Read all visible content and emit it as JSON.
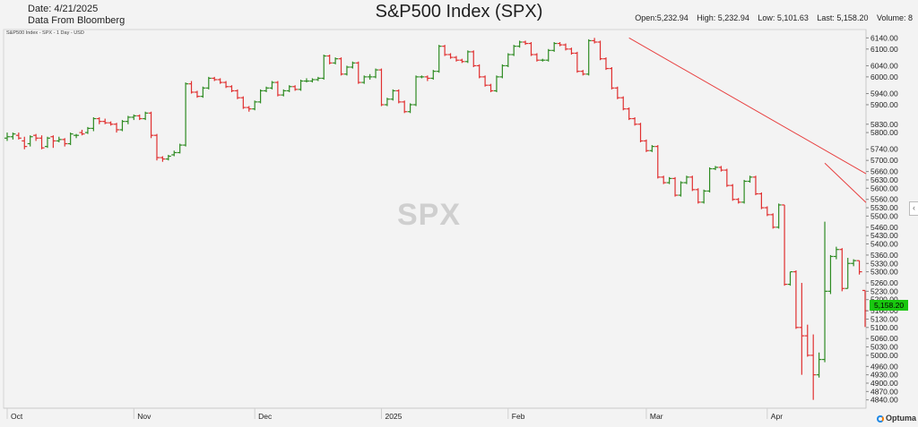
{
  "header": {
    "date": "Date: 4/21/2025",
    "source": "Data From Bloomberg",
    "title": "S&P500 Index (SPX)",
    "open": "Open:5,232.94",
    "high": "High: 5,232.94",
    "low": "Low: 5,101.63",
    "last": "Last: 5,158.20",
    "volume": "Volume: 8"
  },
  "subtitle": "S&P500 Index - SPX - 1 Day - USD",
  "watermark": "SPX",
  "price_tag": "5,158.20",
  "logo": "Optuma",
  "colors": {
    "up": "#2e8b22",
    "down": "#e03030",
    "trend": "#e84040",
    "price_tag": "#19c70f",
    "background": "#f3f3f3"
  },
  "chart_data": {
    "type": "ohlc",
    "ylim": [
      4810,
      6170
    ],
    "ytick_labels": [
      "6140.00",
      "6100.00",
      "6040.00",
      "6000.00",
      "5940.00",
      "5900.00",
      "5830.00",
      "5800.00",
      "5740.00",
      "5700.00",
      "5660.00",
      "5630.00",
      "5600.00",
      "5560.00",
      "5530.00",
      "5500.00",
      "5460.00",
      "5430.00",
      "5400.00",
      "5360.00",
      "5330.00",
      "5300.00",
      "5260.00",
      "5230.00",
      "5200.00",
      "5160.00",
      "5130.00",
      "5100.00",
      "5060.00",
      "5030.00",
      "5000.00",
      "4960.00",
      "4930.00",
      "4900.00",
      "4870.00",
      "4840.00"
    ],
    "month_labels": [
      {
        "label": "Oct",
        "i": 0
      },
      {
        "label": "Nov",
        "i": 22
      },
      {
        "label": "Dec",
        "i": 43
      },
      {
        "label": "2025",
        "i": 65
      },
      {
        "label": "Feb",
        "i": 87
      },
      {
        "label": "Mar",
        "i": 111
      },
      {
        "label": "Apr",
        "i": 132
      }
    ],
    "last": 5158.2,
    "close": [
      5785,
      5795,
      5780,
      5750,
      5785,
      5780,
      5745,
      5780,
      5770,
      5775,
      5760,
      5795,
      5790,
      5795,
      5815,
      5850,
      5840,
      5835,
      5830,
      5810,
      5840,
      5855,
      5860,
      5850,
      5870,
      5790,
      5710,
      5705,
      5715,
      5728,
      5755,
      5975,
      5945,
      5930,
      5960,
      5995,
      5990,
      5980,
      5965,
      5950,
      5925,
      5890,
      5885,
      5910,
      5950,
      5960,
      5980,
      5935,
      5950,
      5965,
      5955,
      5985,
      5985,
      5990,
      5995,
      6075,
      6050,
      6065,
      6010,
      6035,
      6050,
      5980,
      6000,
      6000,
      6025,
      5900,
      5920,
      5950,
      5910,
      5875,
      5900,
      6000,
      6000,
      5995,
      6020,
      6110,
      6080,
      6070,
      6060,
      6055,
      6090,
      6040,
      6000,
      5970,
      5950,
      6000,
      6040,
      6080,
      6110,
      6125,
      6120,
      6080,
      6060,
      6060,
      6095,
      6120,
      6115,
      6100,
      6085,
      6020,
      6010,
      6130,
      6125,
      6065,
      6030,
      5960,
      5925,
      5885,
      5850,
      5830,
      5770,
      5735,
      5750,
      5640,
      5620,
      5635,
      5575,
      5620,
      5640,
      5595,
      5550,
      5590,
      5670,
      5675,
      5665,
      5610,
      5560,
      5550,
      5625,
      5640,
      5580,
      5530,
      5505,
      5460,
      5540,
      5255,
      5300,
      5100,
      5070,
      5000,
      4930,
      4985,
      5230,
      5355,
      5380,
      5240,
      5330,
      5340,
      5300,
      5160
    ],
    "open": [
      5780,
      5785,
      5790,
      5770,
      5760,
      5790,
      5780,
      5750,
      5785,
      5770,
      5775,
      5760,
      5790,
      5800,
      5800,
      5815,
      5850,
      5840,
      5835,
      5830,
      5810,
      5840,
      5855,
      5860,
      5850,
      5870,
      5790,
      5710,
      5705,
      5720,
      5728,
      5755,
      5975,
      5945,
      5930,
      5960,
      5995,
      5990,
      5980,
      5965,
      5950,
      5925,
      5890,
      5885,
      5910,
      5950,
      5960,
      5980,
      5935,
      5950,
      5965,
      5955,
      5985,
      5985,
      5990,
      5995,
      6075,
      6050,
      6065,
      6010,
      6035,
      6050,
      5980,
      6000,
      6000,
      6025,
      5900,
      5920,
      5950,
      5910,
      5875,
      5900,
      6000,
      6000,
      5995,
      6020,
      6110,
      6080,
      6070,
      6060,
      6055,
      6090,
      6040,
      6000,
      5970,
      5950,
      6000,
      6040,
      6080,
      6110,
      6125,
      6120,
      6080,
      6060,
      6060,
      6095,
      6120,
      6115,
      6100,
      6085,
      6020,
      6010,
      6130,
      6125,
      6065,
      6030,
      5960,
      5925,
      5885,
      5850,
      5830,
      5770,
      5735,
      5750,
      5640,
      5620,
      5635,
      5575,
      5620,
      5640,
      5595,
      5550,
      5590,
      5670,
      5675,
      5665,
      5610,
      5560,
      5550,
      5625,
      5640,
      5580,
      5530,
      5505,
      5460,
      5540,
      5255,
      5300,
      5100,
      5070,
      5000,
      4930,
      4985,
      5230,
      5355,
      5380,
      5240,
      5330,
      5340,
      5232.94
    ],
    "high": [
      5800,
      5800,
      5800,
      5785,
      5790,
      5795,
      5790,
      5785,
      5790,
      5785,
      5780,
      5800,
      5795,
      5810,
      5820,
      5855,
      5855,
      5850,
      5840,
      5835,
      5845,
      5860,
      5865,
      5865,
      5875,
      5875,
      5795,
      5715,
      5720,
      5735,
      5760,
      5980,
      5985,
      5950,
      5965,
      6000,
      6000,
      5995,
      5985,
      5970,
      5955,
      5930,
      5895,
      5915,
      5955,
      5965,
      5985,
      5985,
      5955,
      5970,
      5970,
      5990,
      5995,
      5995,
      6000,
      6080,
      6080,
      6070,
      6070,
      6040,
      6055,
      6055,
      6005,
      6010,
      6030,
      6030,
      5925,
      5955,
      5955,
      5915,
      5905,
      6005,
      6005,
      6005,
      6025,
      6115,
      6115,
      6085,
      6075,
      6065,
      6095,
      6095,
      6045,
      6005,
      5975,
      6005,
      6045,
      6085,
      6115,
      6130,
      6130,
      6125,
      6085,
      6065,
      6100,
      6125,
      6125,
      6120,
      6105,
      6090,
      6025,
      6135,
      6140,
      6130,
      6070,
      6035,
      5965,
      5930,
      5890,
      5855,
      5835,
      5775,
      5755,
      5755,
      5645,
      5640,
      5640,
      5625,
      5645,
      5645,
      5600,
      5595,
      5675,
      5680,
      5680,
      5670,
      5615,
      5565,
      5630,
      5645,
      5645,
      5585,
      5535,
      5510,
      5545,
      5540,
      5300,
      5305,
      5260,
      5110,
      5075,
      5010,
      5480,
      5360,
      5390,
      5385,
      5350,
      5345,
      5340,
      5232.94
    ],
    "low": [
      5770,
      5775,
      5775,
      5740,
      5750,
      5770,
      5740,
      5745,
      5745,
      5765,
      5750,
      5755,
      5780,
      5790,
      5795,
      5805,
      5830,
      5830,
      5825,
      5800,
      5805,
      5830,
      5845,
      5845,
      5845,
      5780,
      5700,
      5695,
      5700,
      5715,
      5725,
      5750,
      5940,
      5925,
      5925,
      5955,
      5985,
      5975,
      5960,
      5945,
      5920,
      5885,
      5875,
      5880,
      5905,
      5945,
      5955,
      5930,
      5930,
      5945,
      5950,
      5950,
      5980,
      5980,
      5985,
      5990,
      6045,
      6045,
      6005,
      6005,
      6030,
      5975,
      5975,
      5990,
      5995,
      5895,
      5895,
      5915,
      5905,
      5870,
      5870,
      5895,
      5995,
      5985,
      5990,
      6015,
      6075,
      6065,
      6055,
      6050,
      6050,
      6035,
      5995,
      5965,
      5945,
      5945,
      5995,
      6035,
      6075,
      6105,
      6115,
      6075,
      6055,
      6055,
      6055,
      6090,
      6110,
      6095,
      6080,
      6015,
      6005,
      6005,
      6120,
      6060,
      6025,
      5955,
      5920,
      5880,
      5845,
      5825,
      5765,
      5730,
      5730,
      5635,
      5615,
      5615,
      5570,
      5570,
      5615,
      5590,
      5545,
      5545,
      5585,
      5665,
      5660,
      5605,
      5555,
      5545,
      5545,
      5620,
      5575,
      5525,
      5500,
      5455,
      5455,
      5250,
      5250,
      5095,
      4930,
      4995,
      4840,
      4920,
      4975,
      5220,
      5345,
      5230,
      5240,
      5320,
      5290,
      5101.63
    ],
    "trendlines": [
      {
        "from": {
          "i": 108,
          "price": 6140
        },
        "to": {
          "i": 162,
          "price": 5500
        }
      },
      {
        "from": {
          "i": 142,
          "price": 5690
        },
        "to": {
          "i": 162,
          "price": 5295
        }
      }
    ]
  }
}
